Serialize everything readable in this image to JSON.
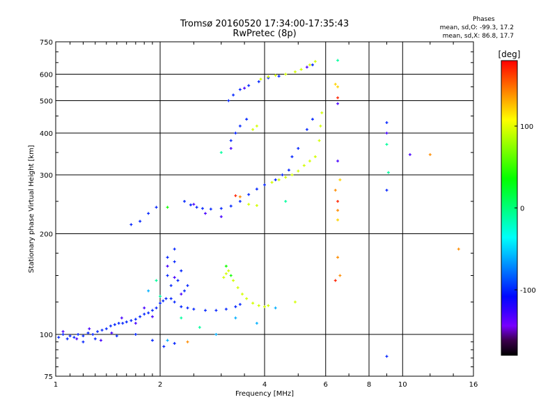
{
  "chart_data": {
    "type": "scatter",
    "title": "Tromsø 20160520 17:34:00-17:35:43",
    "subtitle": "RwPretec (8p)",
    "xlabel": "Frequency [MHz]",
    "ylabel": "Stationary phase Virtual Height [km]",
    "x_scale": "log",
    "y_scale": "log",
    "xlim": [
      1,
      16
    ],
    "ylim": [
      75,
      750
    ],
    "x_ticks": [
      1,
      2,
      4,
      6,
      8,
      10,
      16
    ],
    "x_tick_labels": [
      "1",
      "2",
      "4",
      "6",
      "8",
      "10",
      "16"
    ],
    "y_ticks": [
      75,
      100,
      200,
      300,
      400,
      500,
      600,
      750
    ],
    "y_tick_labels": [
      "75",
      "100",
      "200",
      "300",
      "400",
      "500",
      "600",
      "750"
    ],
    "grid": true,
    "colorbar": {
      "label": "[deg]",
      "range": [
        -180,
        180
      ],
      "ticks": [
        100,
        0,
        -100
      ],
      "tick_labels": [
        "100",
        "0",
        "-100"
      ]
    },
    "stats": {
      "heading": "Phases",
      "o_line": "mean, sd,O: -99.3, 17.2",
      "x_line": "mean, sd,X:  86.8, 17.7"
    },
    "series": [
      {
        "phase": -100,
        "points": [
          [
            1.02,
            98
          ],
          [
            1.05,
            100
          ],
          [
            1.08,
            97
          ],
          [
            1.1,
            99
          ],
          [
            1.13,
            98
          ],
          [
            1.16,
            100
          ],
          [
            1.2,
            99
          ],
          [
            1.24,
            101
          ],
          [
            1.28,
            100
          ],
          [
            1.32,
            102
          ],
          [
            1.36,
            103
          ],
          [
            1.4,
            104
          ],
          [
            1.44,
            106
          ],
          [
            1.48,
            107
          ],
          [
            1.52,
            108
          ],
          [
            1.56,
            108
          ],
          [
            1.6,
            109
          ],
          [
            1.65,
            110
          ],
          [
            1.7,
            111
          ],
          [
            1.75,
            113
          ],
          [
            1.8,
            115
          ],
          [
            1.85,
            116
          ],
          [
            1.9,
            118
          ],
          [
            1.95,
            120
          ],
          [
            2.0,
            124
          ],
          [
            2.04,
            126
          ],
          [
            2.08,
            128
          ],
          [
            2.15,
            128
          ],
          [
            2.2,
            125
          ],
          [
            2.3,
            121
          ],
          [
            2.4,
            120
          ],
          [
            2.5,
            119
          ],
          [
            2.7,
            118
          ],
          [
            2.9,
            118
          ],
          [
            3.1,
            119
          ],
          [
            3.3,
            121
          ],
          [
            3.4,
            123
          ],
          [
            2.35,
            250
          ],
          [
            2.45,
            244
          ],
          [
            2.55,
            240
          ],
          [
            2.65,
            238
          ],
          [
            2.8,
            237
          ],
          [
            3.0,
            238
          ],
          [
            3.2,
            242
          ],
          [
            3.4,
            250
          ],
          [
            3.6,
            262
          ],
          [
            3.8,
            272
          ],
          [
            4.0,
            280
          ],
          [
            4.3,
            290
          ],
          [
            4.5,
            300
          ],
          [
            4.7,
            310
          ],
          [
            3.2,
            380
          ],
          [
            3.3,
            400
          ],
          [
            3.4,
            420
          ],
          [
            3.55,
            440
          ],
          [
            3.15,
            500
          ],
          [
            3.25,
            520
          ],
          [
            3.4,
            540
          ],
          [
            3.6,
            555
          ],
          [
            3.85,
            570
          ],
          [
            4.1,
            585
          ],
          [
            4.4,
            592
          ],
          [
            1.65,
            213
          ],
          [
            1.75,
            218
          ],
          [
            1.85,
            230
          ],
          [
            1.95,
            240
          ],
          [
            1.2,
            95
          ],
          [
            1.3,
            97
          ],
          [
            1.5,
            99
          ],
          [
            1.7,
            100
          ],
          [
            1.9,
            96
          ],
          [
            2.05,
            92
          ],
          [
            2.2,
            94
          ],
          [
            2.1,
            150
          ],
          [
            2.15,
            140
          ],
          [
            2.2,
            165
          ],
          [
            2.25,
            145
          ],
          [
            2.3,
            155
          ],
          [
            2.35,
            135
          ],
          [
            2.4,
            140
          ],
          [
            2.1,
            170
          ],
          [
            2.2,
            180
          ],
          [
            4.8,
            340
          ],
          [
            5.0,
            360
          ],
          [
            5.3,
            410
          ],
          [
            5.5,
            440
          ],
          [
            9.0,
            86
          ],
          [
            9.0,
            430
          ],
          [
            9.0,
            270
          ],
          [
            5.5,
            640
          ]
        ]
      },
      {
        "phase": -130,
        "points": [
          [
            1.05,
            102
          ],
          [
            1.15,
            97
          ],
          [
            1.25,
            104
          ],
          [
            1.35,
            96
          ],
          [
            1.45,
            101
          ],
          [
            1.55,
            112
          ],
          [
            1.7,
            108
          ],
          [
            1.8,
            120
          ],
          [
            1.9,
            113
          ],
          [
            2.1,
            160
          ],
          [
            2.2,
            148
          ],
          [
            2.3,
            132
          ],
          [
            2.5,
            245
          ],
          [
            2.7,
            230
          ],
          [
            3.0,
            225
          ],
          [
            3.2,
            360
          ],
          [
            3.5,
            545
          ],
          [
            5.3,
            630
          ],
          [
            6.5,
            490
          ],
          [
            6.5,
            330
          ],
          [
            9.0,
            400
          ],
          [
            10.5,
            345
          ]
        ]
      },
      {
        "phase": 95,
        "points": [
          [
            3.05,
            148
          ],
          [
            3.1,
            152
          ],
          [
            3.15,
            155
          ],
          [
            3.25,
            145
          ],
          [
            3.35,
            138
          ],
          [
            3.45,
            132
          ],
          [
            3.55,
            128
          ],
          [
            3.7,
            124
          ],
          [
            3.85,
            122
          ],
          [
            4.0,
            121
          ],
          [
            4.1,
            122
          ],
          [
            4.2,
            285
          ],
          [
            4.4,
            290
          ],
          [
            4.6,
            295
          ],
          [
            4.8,
            300
          ],
          [
            5.0,
            308
          ],
          [
            5.2,
            320
          ],
          [
            5.4,
            330
          ],
          [
            5.6,
            340
          ],
          [
            5.75,
            380
          ],
          [
            5.8,
            420
          ],
          [
            5.85,
            460
          ],
          [
            3.6,
            245
          ],
          [
            3.8,
            243
          ],
          [
            3.7,
            410
          ],
          [
            3.8,
            420
          ],
          [
            3.9,
            580
          ],
          [
            4.1,
            590
          ],
          [
            4.3,
            595
          ],
          [
            4.6,
            600
          ],
          [
            4.9,
            610
          ],
          [
            5.1,
            620
          ],
          [
            5.4,
            640
          ],
          [
            5.6,
            655
          ],
          [
            4.9,
            125
          ]
        ]
      },
      {
        "phase": 40,
        "points": [
          [
            2.1,
            240
          ],
          [
            3.2,
            150
          ],
          [
            3.1,
            160
          ]
        ]
      },
      {
        "phase": -10,
        "points": [
          [
            2.3,
            112
          ],
          [
            2.6,
            105
          ],
          [
            3.0,
            350
          ],
          [
            4.6,
            250
          ],
          [
            6.5,
            660
          ],
          [
            1.95,
            145
          ],
          [
            2.0,
            130
          ],
          [
            9.0,
            370
          ],
          [
            9.1,
            305
          ]
        ]
      },
      {
        "phase": -60,
        "points": [
          [
            2.9,
            100
          ],
          [
            3.3,
            112
          ],
          [
            3.8,
            108
          ],
          [
            4.3,
            120
          ],
          [
            1.85,
            135
          ],
          [
            2.1,
            96
          ]
        ]
      },
      {
        "phase": 140,
        "points": [
          [
            6.4,
            270
          ],
          [
            6.5,
            235
          ],
          [
            6.5,
            170
          ],
          [
            6.6,
            150
          ],
          [
            14.5,
            180
          ],
          [
            12.0,
            345
          ],
          [
            2.4,
            95
          ],
          [
            3.4,
            258
          ]
        ]
      },
      {
        "phase": 170,
        "points": [
          [
            3.3,
            260
          ],
          [
            6.5,
            510
          ],
          [
            6.4,
            145
          ],
          [
            6.5,
            250
          ]
        ]
      },
      {
        "phase": 120,
        "points": [
          [
            6.5,
            220
          ],
          [
            6.5,
            550
          ],
          [
            6.6,
            290
          ],
          [
            6.4,
            560
          ]
        ]
      }
    ]
  }
}
